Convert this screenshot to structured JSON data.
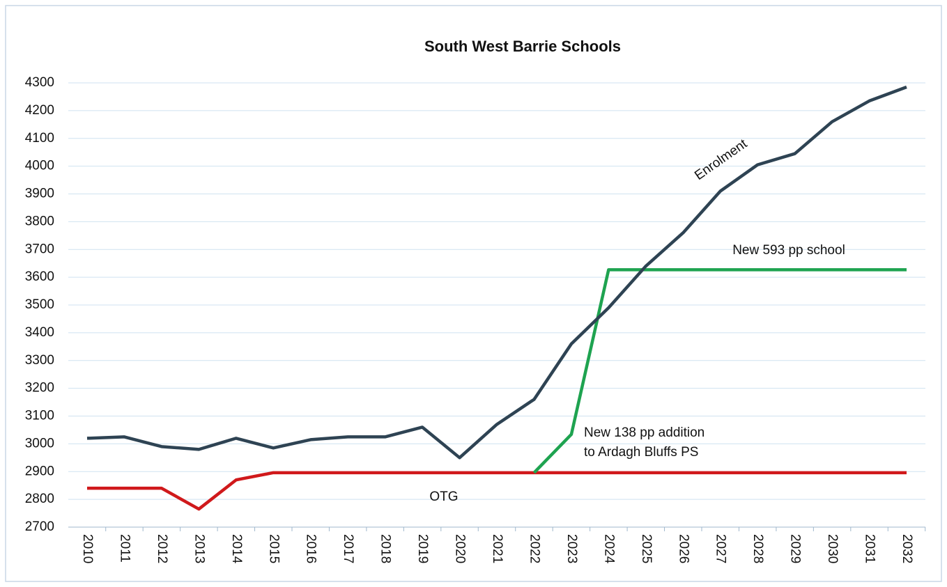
{
  "chart_data": {
    "type": "line",
    "title": "South West Barrie Schools",
    "categories": [
      "2010",
      "2011",
      "2012",
      "2013",
      "2014",
      "2015",
      "2016",
      "2017",
      "2018",
      "2019",
      "2020",
      "2021",
      "2022",
      "2023",
      "2024",
      "2025",
      "2026",
      "2027",
      "2028",
      "2029",
      "2030",
      "2031",
      "2032"
    ],
    "series": [
      {
        "name": "Enrolment",
        "color": "#2e4353",
        "values": [
          3020,
          3025,
          2990,
          2980,
          3020,
          2985,
          3015,
          3025,
          3025,
          3060,
          2950,
          3070,
          3160,
          3360,
          3490,
          3640,
          3760,
          3910,
          4005,
          4045,
          4160,
          4235,
          4285
        ]
      },
      {
        "name": "OTG",
        "color": "#d0191b",
        "values": [
          2840,
          2840,
          2840,
          2765,
          2870,
          2896,
          2896,
          2896,
          2896,
          2896,
          2896,
          2896,
          2896,
          2896,
          2896,
          2896,
          2896,
          2896,
          2896,
          2896,
          2896,
          2896,
          2896
        ]
      },
      {
        "name": "New 593 pp school",
        "color": "#1ea350",
        "values": [
          null,
          null,
          null,
          null,
          null,
          null,
          null,
          null,
          null,
          null,
          null,
          null,
          2896,
          3034,
          3627,
          3627,
          3627,
          3627,
          3627,
          3627,
          3627,
          3627,
          3627
        ]
      }
    ],
    "annotations": [
      {
        "text": "Enrolment"
      },
      {
        "text": "New 593 pp school"
      },
      {
        "lines": [
          "New 138 pp addition",
          "to Ardagh Bluffs PS"
        ]
      },
      {
        "text": "OTG"
      }
    ],
    "ylim": [
      2700,
      4300
    ],
    "yticks": [
      2700,
      2800,
      2900,
      3000,
      3100,
      3200,
      3300,
      3400,
      3500,
      3600,
      3700,
      3800,
      3900,
      4000,
      4100,
      4200,
      4300
    ],
    "grid": true
  }
}
